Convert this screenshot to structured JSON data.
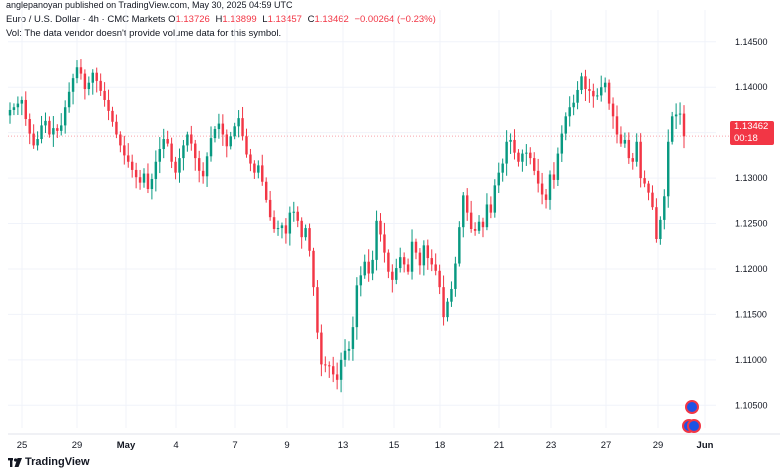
{
  "publisher": "anglepanoyan published on TradingView.com, May 30, 2025 04:59 UTC",
  "legend": {
    "symbol": "Euro / U.S. Dollar · 4h · CMC Markets",
    "open_label": "O",
    "open": "1.13726",
    "high_label": "H",
    "high": "1.13899",
    "low_label": "L",
    "low": "1.13457",
    "close_label": "C",
    "close": "1.13462",
    "change": "−0.00264 (−0.23%)"
  },
  "vol_note": "Vol: The data vendor doesn't provide volume data for this symbol.",
  "brand": "TradingView",
  "last_price": {
    "price": "1.13462",
    "countdown": "00:18"
  },
  "colors": {
    "up": "#089981",
    "down": "#f23645",
    "grid": "#f0f3fa",
    "axis_text": "#131722"
  },
  "chart_data": {
    "type": "candlestick",
    "y_ticks": [
      1.145,
      1.14,
      1.135,
      1.13,
      1.125,
      1.12,
      1.115,
      1.11,
      1.105
    ],
    "y_tick_labels": [
      "1.14500",
      "1.14000",
      "1.13500",
      "1.13000",
      "1.12500",
      "1.12000",
      "1.11500",
      "1.11000",
      "1.10500"
    ],
    "ylim": [
      1.1025,
      1.1485
    ],
    "x_ticks": [
      "25",
      "29",
      "May",
      "4",
      "7",
      "9",
      "13",
      "15",
      "18",
      "21",
      "23",
      "27",
      "29",
      "Jun"
    ],
    "last_price": 1.13462,
    "closes": [
      1.1375,
      1.1378,
      1.1382,
      1.1386,
      1.1365,
      1.1349,
      1.1336,
      1.1343,
      1.1358,
      1.1363,
      1.1348,
      1.1355,
      1.1352,
      1.1358,
      1.1378,
      1.1395,
      1.141,
      1.1422,
      1.1415,
      1.1398,
      1.1405,
      1.1416,
      1.1407,
      1.1396,
      1.1386,
      1.1374,
      1.1362,
      1.1348,
      1.1336,
      1.1325,
      1.1318,
      1.1309,
      1.1301,
      1.1295,
      1.1305,
      1.1288,
      1.1299,
      1.1318,
      1.1332,
      1.1343,
      1.1338,
      1.1318,
      1.1306,
      1.1322,
      1.1336,
      1.1348,
      1.1338,
      1.1322,
      1.1308,
      1.1302,
      1.1324,
      1.1344,
      1.1354,
      1.136,
      1.1348,
      1.1335,
      1.1346,
      1.1357,
      1.1366,
      1.1346,
      1.1326,
      1.1316,
      1.1306,
      1.1314,
      1.1296,
      1.1276,
      1.1257,
      1.1244,
      1.1245,
      1.1248,
      1.1239,
      1.1262,
      1.1263,
      1.1253,
      1.1235,
      1.1245,
      1.122,
      1.118,
      1.113,
      1.1095,
      1.1094,
      1.1093,
      1.1084,
      1.1078,
      1.11,
      1.111,
      1.1112,
      1.1136,
      1.1182,
      1.1193,
      1.1208,
      1.1195,
      1.121,
      1.1253,
      1.1238,
      1.1218,
      1.1197,
      1.1188,
      1.1201,
      1.1213,
      1.1205,
      1.1197,
      1.123,
      1.1218,
      1.1204,
      1.1226,
      1.1212,
      1.1205,
      1.1198,
      1.118,
      1.1147,
      1.1164,
      1.1178,
      1.1206,
      1.1246,
      1.1281,
      1.1262,
      1.1244,
      1.1242,
      1.1252,
      1.1246,
      1.1271,
      1.1262,
      1.1292,
      1.1306,
      1.1316,
      1.134,
      1.1342,
      1.1328,
      1.1318,
      1.1327,
      1.1328,
      1.1322,
      1.1308,
      1.1294,
      1.1282,
      1.1276,
      1.1304,
      1.1298,
      1.1327,
      1.1349,
      1.1368,
      1.1378,
      1.1383,
      1.1397,
      1.1412,
      1.1398,
      1.1396,
      1.139,
      1.1391,
      1.14,
      1.1405,
      1.1382,
      1.1368,
      1.1348,
      1.1338,
      1.1342,
      1.1322,
      1.1318,
      1.134,
      1.13,
      1.1294,
      1.1284,
      1.1268,
      1.1233,
      1.1254,
      1.128,
      1.134,
      1.1368,
      1.137,
      1.1371,
      1.1346
    ]
  }
}
